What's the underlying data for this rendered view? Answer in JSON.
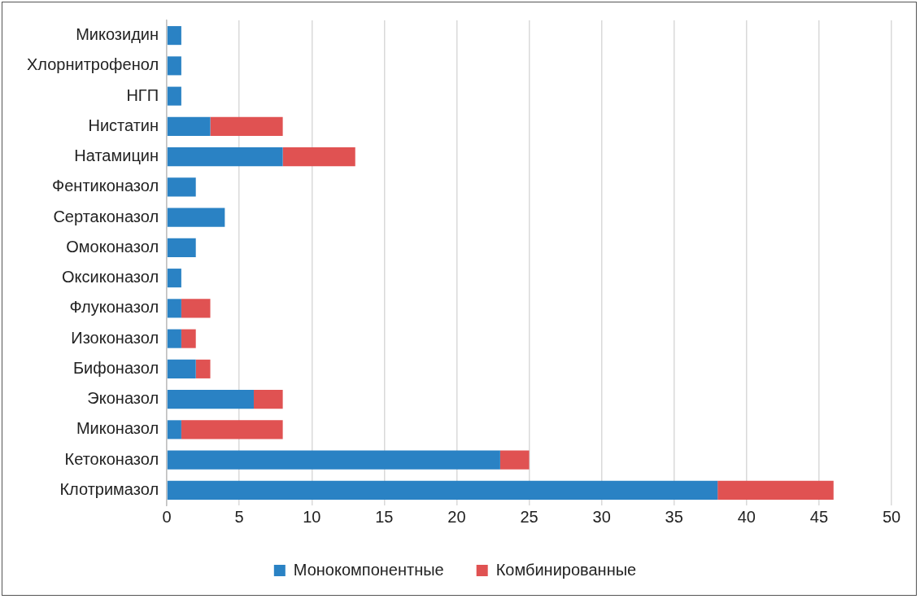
{
  "chart_data": {
    "type": "bar",
    "orientation": "horizontal",
    "stacked": true,
    "categories": [
      "Микозидин",
      "Хлорнитрофенол",
      "НГП",
      "Нистатин",
      "Натамицин",
      "Фентиконазол",
      "Сертаконазол",
      "Омоконазол",
      "Оксиконазол",
      "Флуконазол",
      "Изоконазол",
      "Бифоназол",
      "Эконазол",
      "Миконазол",
      "Кетоконазол",
      "Клотримазол"
    ],
    "series": [
      {
        "name": "Монокомпонентные",
        "color": "#2a82c4",
        "values": [
          1,
          1,
          1,
          3,
          8,
          2,
          4,
          2,
          1,
          1,
          1,
          2,
          6,
          1,
          23,
          38
        ]
      },
      {
        "name": "Комбинированные",
        "color": "#e05252",
        "values": [
          null,
          null,
          null,
          5,
          5,
          null,
          null,
          null,
          null,
          2,
          1,
          1,
          2,
          7,
          2,
          8
        ]
      }
    ],
    "xlim": [
      0,
      50
    ],
    "xticks": [
      0,
      5,
      10,
      15,
      20,
      25,
      30,
      35,
      40,
      45,
      50
    ],
    "grid": "x",
    "legend": "bottom"
  }
}
